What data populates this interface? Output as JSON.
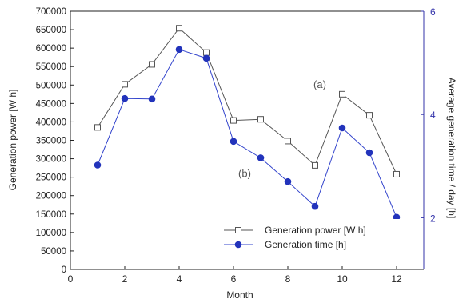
{
  "chart_data": {
    "type": "line",
    "xlabel": "Month",
    "ylabel_left": "Generation power [W h]",
    "ylabel_right": "Average generation time / day [h]",
    "x_ticks": [
      0,
      2,
      4,
      6,
      8,
      10,
      12
    ],
    "x_range": [
      0,
      13
    ],
    "left_ticks": [
      0,
      50000,
      100000,
      150000,
      200000,
      250000,
      300000,
      350000,
      400000,
      450000,
      500000,
      550000,
      600000,
      650000,
      700000
    ],
    "left_range": [
      0,
      700000
    ],
    "right_ticks": [
      2,
      4,
      6
    ],
    "right_range": [
      1,
      6
    ],
    "grid": false,
    "legend_position": "bottom-center",
    "series": [
      {
        "name": "Generation power [W h]",
        "axis": "left",
        "marker": "open-square",
        "color": "#555555",
        "x": [
          1,
          2,
          3,
          4,
          5,
          6,
          7,
          8,
          9,
          10,
          11,
          12
        ],
        "y": [
          385000,
          502000,
          556000,
          654000,
          588000,
          404000,
          407000,
          348000,
          282000,
          475000,
          418000,
          258000
        ]
      },
      {
        "name": "Generation time [h]",
        "axis": "right",
        "marker": "filled-circle",
        "color": "#3344cc",
        "x": [
          1,
          2,
          3,
          4,
          5,
          6,
          7,
          8,
          9,
          10,
          11,
          12
        ],
        "y": [
          3.02,
          4.31,
          4.3,
          5.26,
          5.09,
          3.48,
          3.16,
          2.7,
          2.22,
          3.74,
          3.26,
          2.01
        ]
      }
    ],
    "annotations": [
      {
        "text": "(a)",
        "series": 0
      },
      {
        "text": "(b)",
        "series": 1
      }
    ],
    "right_axis_color": "#3333aa"
  }
}
